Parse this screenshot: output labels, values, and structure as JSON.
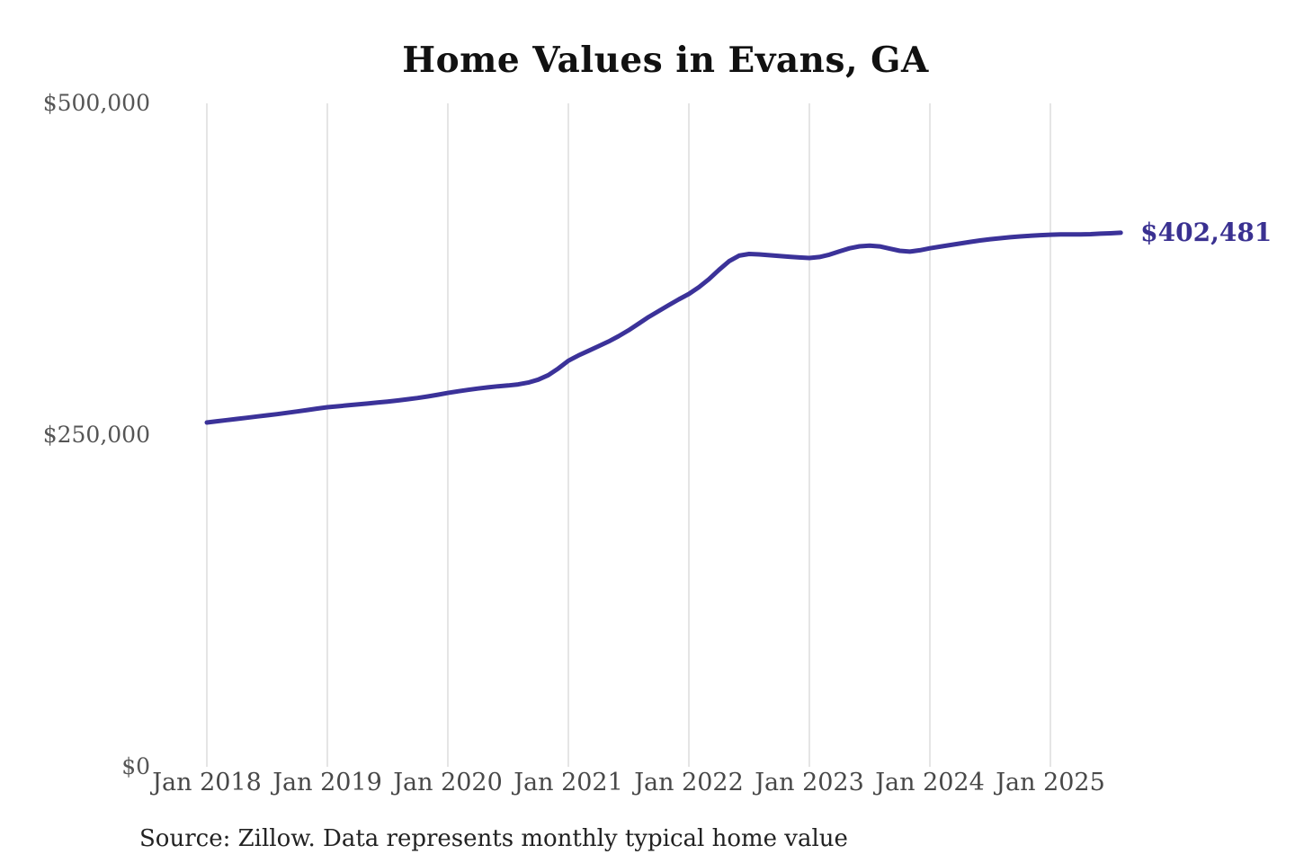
{
  "chart_data": {
    "type": "line",
    "title": "Home Values in Evans, GA",
    "source_note": "Source: Zillow. Data represents monthly typical home value",
    "x_tick_labels": [
      "Jan 2018",
      "Jan 2019",
      "Jan 2020",
      "Jan 2021",
      "Jan 2022",
      "Jan 2023",
      "Jan 2024",
      "Jan 2025"
    ],
    "y_tick_labels": [
      "$500,000",
      "$250,000",
      "$0"
    ],
    "y_tick_values": [
      500000,
      250000,
      0
    ],
    "ylim": [
      0,
      500000
    ],
    "grid": "vertical-only",
    "grid_color": "#cbcbcb",
    "x_start": "2018-01",
    "x_interval": "month",
    "end_label": "$402,481",
    "end_value": 402481,
    "series": [
      {
        "name": "Typical home value",
        "color": "#3b3299",
        "points": [
          259500,
          260400,
          261300,
          262200,
          263100,
          264000,
          264900,
          265800,
          266800,
          267800,
          268900,
          270000,
          271000,
          271700,
          272400,
          273100,
          273800,
          274500,
          275300,
          276100,
          277000,
          278000,
          279100,
          280400,
          281800,
          283000,
          284100,
          285100,
          286000,
          286800,
          287400,
          288200,
          289600,
          291800,
          295200,
          300200,
          306000,
          310000,
          313500,
          317000,
          320500,
          324500,
          329000,
          334000,
          339000,
          343500,
          348000,
          352300,
          356400,
          361500,
          367500,
          374500,
          381000,
          385200,
          386500,
          386200,
          385600,
          385000,
          384400,
          383900,
          383500,
          384200,
          386000,
          388500,
          390800,
          392300,
          392800,
          392200,
          390500,
          388900,
          388300,
          389300,
          390800,
          392000,
          393200,
          394400,
          395600,
          396700,
          397600,
          398400,
          399100,
          399700,
          400200,
          400700,
          401000,
          401200,
          401300,
          401200,
          401400,
          401800,
          402100,
          402481
        ]
      }
    ]
  }
}
